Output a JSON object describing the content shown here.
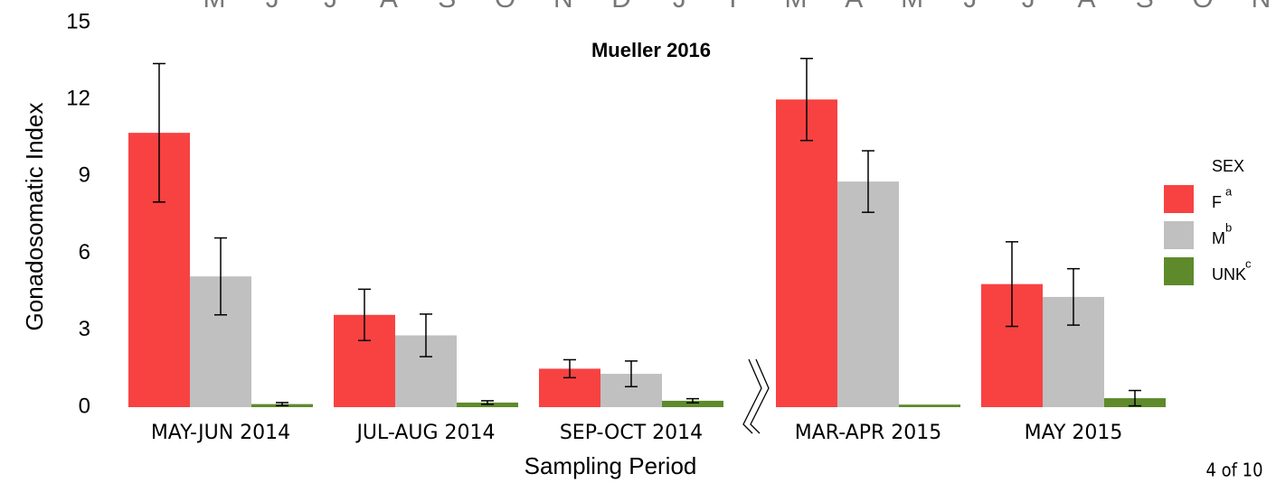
{
  "chart_data": {
    "type": "bar",
    "top_strip": [
      "M",
      "J",
      "J",
      "A",
      "S",
      "O",
      "N",
      "D",
      "J",
      "F",
      "M",
      "A",
      "M",
      "J",
      "J",
      "A",
      "S",
      "O",
      "N"
    ],
    "title": "Mueller 2016",
    "x_label": "Sampling Period",
    "y_label": "Gonadosomatic Index",
    "page_label": "4 of 10",
    "legend_title": "SEX",
    "legend_position": "right",
    "categories": [
      "MAY-JUN 2014",
      "JUL-AUG 2014",
      "SEP-OCT 2014",
      "MAR-APR 2015",
      "MAY 2015"
    ],
    "series": [
      {
        "name": "F",
        "superscript": "a",
        "color": "#f84242",
        "values": [
          10.7,
          3.6,
          1.5,
          12.0,
          4.8
        ],
        "errors": [
          2.7,
          1.0,
          0.35,
          1.6,
          1.65
        ]
      },
      {
        "name": "M",
        "superscript": "b",
        "color": "#c0c0c0",
        "values": [
          5.1,
          2.8,
          1.3,
          8.8,
          4.3
        ],
        "errors": [
          1.5,
          0.83,
          0.5,
          1.2,
          1.1
        ]
      },
      {
        "name": "UNK",
        "superscript": "c",
        "color": "#5e8a2c",
        "values": [
          0.12,
          0.18,
          0.25,
          0.1,
          0.35
        ],
        "errors": [
          0.06,
          0.07,
          0.08,
          0,
          0.3
        ]
      }
    ],
    "ylim": [
      0,
      15
    ],
    "yticks": [
      0,
      3,
      6,
      9,
      12,
      15
    ],
    "grid": false
  }
}
